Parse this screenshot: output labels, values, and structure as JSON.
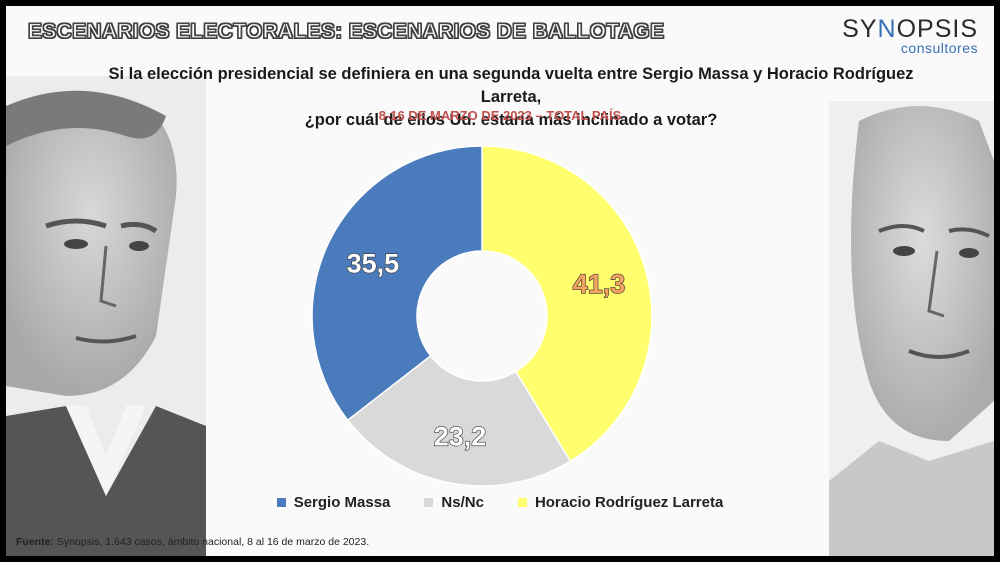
{
  "header": {
    "title": "ESCENARIOS ELECTORALES: ESCENARIOS DE BALLOTAGE",
    "logo_name_part1": "SY",
    "logo_name_accent": "N",
    "logo_name_part2": "OPSIS",
    "logo_sub": "consultores"
  },
  "question": {
    "line1": "Si la elección presidencial se definiera en una segunda vuelta entre Sergio Massa y Horacio Rodríguez Larreta,",
    "line2": "¿por cuál de ellos Ud. estaría más inclinado a votar?"
  },
  "dates": "8-16 DE MARZO DE 2023 – TOTAL PAÍS",
  "chart_data": {
    "type": "pie",
    "donut": true,
    "categories": [
      "Horacio Rodríguez Larreta",
      "Ns/Nc",
      "Sergio Massa"
    ],
    "values": [
      41.3,
      23.2,
      35.5
    ],
    "labels": [
      "41,3",
      "23,2",
      "35,5"
    ],
    "colors": [
      "#ffff6e",
      "#d9d9d9",
      "#4a7bbd"
    ],
    "label_colors": [
      "#f4a460",
      "#ffffff",
      "#ffffff"
    ],
    "legend": [
      "Sergio Massa",
      "Ns/Nc",
      "Horacio Rodríguez Larreta"
    ],
    "legend_colors": [
      "#4a7bbd",
      "#d9d9d9",
      "#ffff6e"
    ],
    "legend_position": "bottom"
  },
  "source": {
    "label": "Fuente:",
    "text": " Synopsis, 1.643 casos, ámbito nacional, 8 al 16 de marzo de 2023."
  }
}
